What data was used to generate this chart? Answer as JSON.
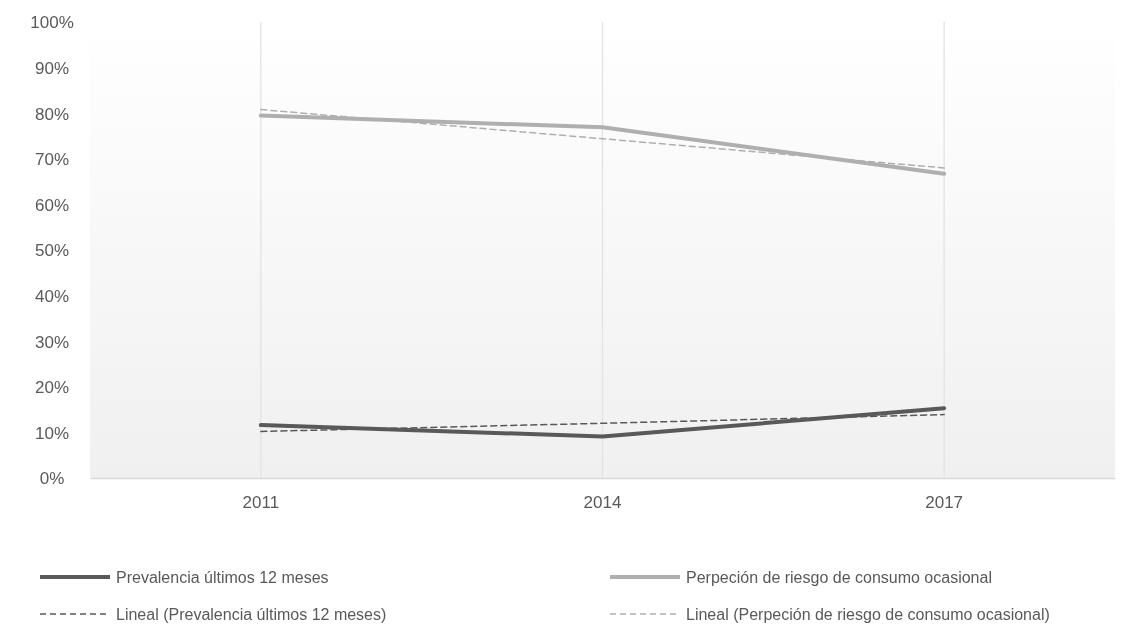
{
  "chart_data": {
    "type": "line",
    "categories": [
      "2011",
      "2014",
      "2017"
    ],
    "series": [
      {
        "name": "Prevalencia últimos 12 meses",
        "color": "#595959",
        "values": [
          11.6,
          9.1,
          15.3
        ]
      },
      {
        "name": "Perpeción de riesgo de consumo ocasional",
        "color": "#afafaf",
        "values": [
          79.5,
          76.9,
          66.7
        ]
      },
      {
        "name": "Lineal (Prevalencia últimos 12 meses)",
        "color": "#595959",
        "values": [
          10.2,
          12.0,
          13.9
        ],
        "line_style": "dashed"
      },
      {
        "name": "Lineal (Perpeción de riesgo de consumo ocasional)",
        "color": "#afafaf",
        "values": [
          80.8,
          74.4,
          68.0
        ],
        "line_style": "dashed"
      }
    ],
    "ylim": [
      0,
      100
    ],
    "yticks": [
      {
        "value": 0,
        "label": "0%"
      },
      {
        "value": 10,
        "label": "10%"
      },
      {
        "value": 20,
        "label": "20%"
      },
      {
        "value": 30,
        "label": "30%"
      },
      {
        "value": 40,
        "label": "40%"
      },
      {
        "value": 50,
        "label": "50%"
      },
      {
        "value": 60,
        "label": "60%"
      },
      {
        "value": 70,
        "label": "70%"
      },
      {
        "value": 80,
        "label": "80%"
      },
      {
        "value": 90,
        "label": "90%"
      },
      {
        "value": 100,
        "label": "100%"
      }
    ],
    "grid": "x",
    "legend": "bottom",
    "line_style": "solid",
    "marker": "none"
  }
}
